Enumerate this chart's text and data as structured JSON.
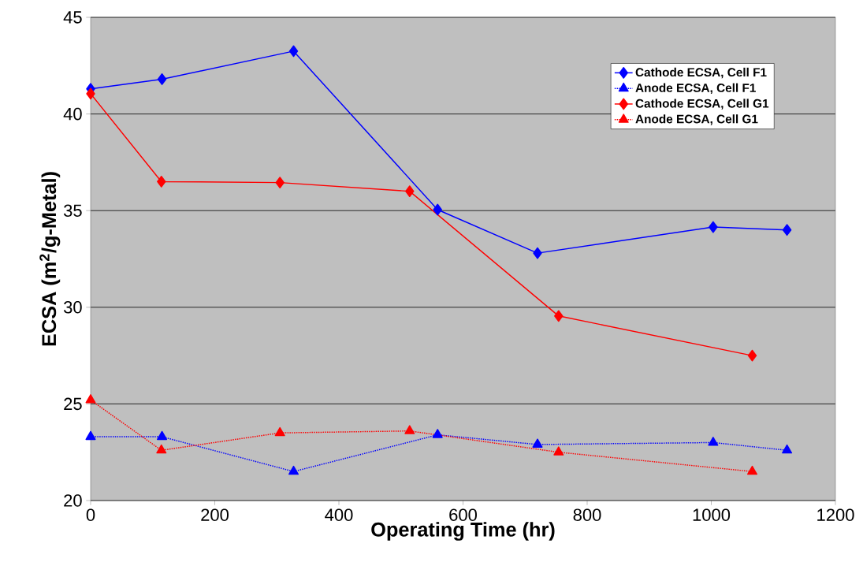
{
  "chart_data": {
    "type": "line",
    "xlabel": "Operating Time (hr)",
    "ylabel": "ECSA (m$^{2}$/g-Metal)",
    "xlim": [
      0,
      1200
    ],
    "xticks": [
      0,
      200,
      400,
      600,
      800,
      1000,
      1200
    ],
    "ylim": [
      20,
      45
    ],
    "yticks": [
      20,
      25,
      30,
      35,
      40,
      45
    ],
    "grid": "y",
    "legend": "top right",
    "series": [
      {
        "name": "Cathode ECSA, Cell F1",
        "color": "#0000ff",
        "marker": "diamond",
        "line_style": "solid",
        "x": [
          0,
          115,
          327,
          559,
          720,
          1003,
          1122
        ],
        "values": [
          41.3,
          41.8,
          43.25,
          35.05,
          32.8,
          34.15,
          34.0
        ]
      },
      {
        "name": "Anode ECSA, Cell F1",
        "color": "#0000ff",
        "marker": "triangle",
        "line_style": "dotted",
        "x": [
          0,
          115,
          327,
          559,
          720,
          1003,
          1122
        ],
        "values": [
          23.3,
          23.3,
          21.5,
          23.4,
          22.9,
          23.0,
          22.6
        ]
      },
      {
        "name": "Cathode ECSA, Cell G1",
        "color": "#ff0000",
        "marker": "diamond",
        "line_style": "solid",
        "x": [
          0,
          114,
          305,
          514,
          754,
          1066
        ],
        "values": [
          41.05,
          36.5,
          36.45,
          36.0,
          29.55,
          27.5
        ]
      },
      {
        "name": "Anode ECSA, Cell G1",
        "color": "#ff0000",
        "marker": "triangle",
        "line_style": "dotted",
        "x": [
          0,
          114,
          305,
          514,
          754,
          1066
        ],
        "values": [
          25.2,
          22.6,
          23.5,
          23.6,
          22.5,
          21.5
        ]
      }
    ]
  }
}
